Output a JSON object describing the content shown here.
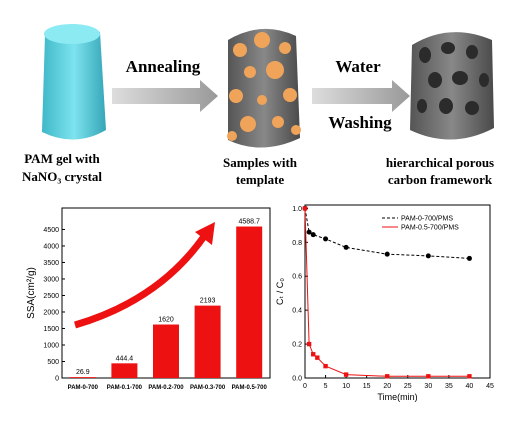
{
  "diagram": {
    "steps": [
      "Annealing",
      "Water",
      "Washing"
    ],
    "captions": [
      [
        "PAM gel with",
        "NaNO₃ crystal"
      ],
      [
        "Samples with",
        "template"
      ],
      [
        "hierarchical porous",
        "carbon framework"
      ]
    ]
  },
  "chart_data": [
    {
      "type": "bar",
      "categories": [
        "PAM-0-700",
        "PAM-0.1-700",
        "PAM-0.2-700",
        "PAM-0.3-700",
        "PAM-0.5-700"
      ],
      "values": [
        26.9,
        444.4,
        1620,
        2193,
        4588.7
      ],
      "color": "#ee1111",
      "ylabel": "SSA(cm²/g)",
      "ylim": [
        0,
        5150
      ],
      "yticks": [
        0,
        500,
        1000,
        1500,
        2000,
        2500,
        3000,
        3500,
        4000,
        4500
      ]
    },
    {
      "type": "line",
      "xlabel": "Time(min)",
      "ylabel": "Cₜ / C₀",
      "xlim": [
        0,
        45
      ],
      "xticks": [
        0,
        5,
        10,
        15,
        20,
        25,
        30,
        35,
        40,
        45
      ],
      "ylim": [
        0,
        1.02
      ],
      "yticks": [
        {
          "value": 0,
          "label": "0.0"
        },
        0.2,
        0.4,
        0.6,
        0.8,
        {
          "value": 1,
          "label": "1.0"
        }
      ],
      "legend": "upper right",
      "series": [
        {
          "name": "PAM-0-700/PMS",
          "color": "#000000",
          "dash": true,
          "marker": "circle",
          "x": [
            0,
            1,
            2,
            5,
            10,
            20,
            30,
            40
          ],
          "values": [
            1.0,
            0.86,
            0.845,
            0.82,
            0.77,
            0.73,
            0.72,
            0.705
          ]
        },
        {
          "name": "PAM-0.5-700/PMS",
          "color": "#ee1111",
          "dash": false,
          "marker": "square",
          "x": [
            0,
            1,
            2,
            3,
            5,
            10,
            20,
            30,
            40
          ],
          "values": [
            1.0,
            0.2,
            0.14,
            0.12,
            0.07,
            0.02,
            0.01,
            0.01,
            0.01
          ]
        }
      ]
    }
  ]
}
